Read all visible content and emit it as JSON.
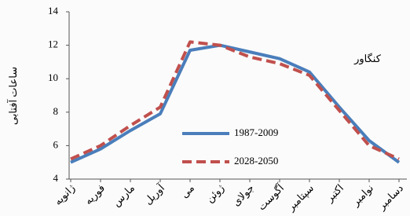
{
  "chart_data": {
    "type": "line",
    "y_label": "ساعات آفتابی",
    "annotation": "کنگاور",
    "categories": [
      "ژانویه",
      "فوریه",
      "مارس",
      "آوریل",
      "می",
      "ژوئن",
      "جولای",
      "آگوست",
      "سپتامبر",
      "اکتبر",
      "نوامبر",
      "دسامبر"
    ],
    "series": [
      {
        "name": "1987-2009",
        "color": "#4a7ebb",
        "dash": false,
        "values": [
          5.0,
          5.8,
          6.9,
          7.9,
          11.7,
          12.0,
          11.6,
          11.2,
          10.4,
          8.3,
          6.3,
          5.0
        ]
      },
      {
        "name": "2028-2050",
        "color": "#c0504d",
        "dash": true,
        "values": [
          5.2,
          6.0,
          7.2,
          8.3,
          12.2,
          12.0,
          11.3,
          10.9,
          10.2,
          8.1,
          6.0,
          5.2
        ]
      }
    ],
    "ylim": [
      4,
      14
    ],
    "yticks": [
      4,
      6,
      8,
      10,
      12,
      14
    ],
    "grid": false
  }
}
